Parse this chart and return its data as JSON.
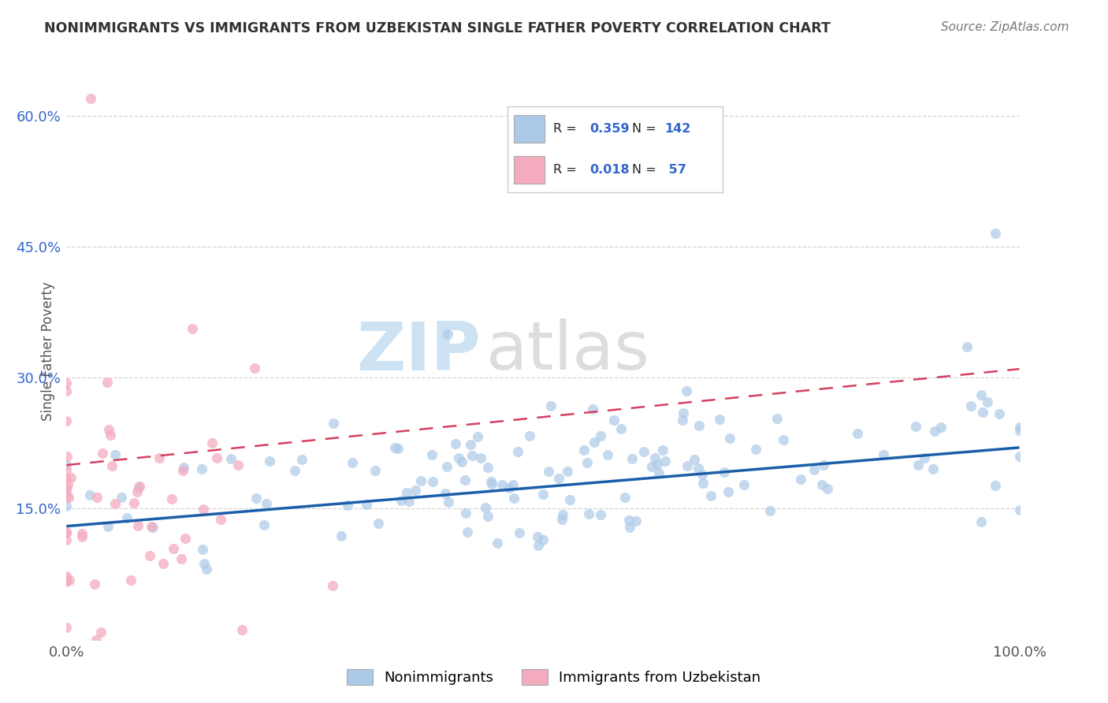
{
  "title": "NONIMMIGRANTS VS IMMIGRANTS FROM UZBEKISTAN SINGLE FATHER POVERTY CORRELATION CHART",
  "source": "Source: ZipAtlas.com",
  "ylabel": "Single Father Poverty",
  "xlim": [
    0,
    100
  ],
  "ylim": [
    0,
    66
  ],
  "ytick_vals": [
    0,
    15,
    30,
    45,
    60
  ],
  "ytick_labels": [
    "",
    "15.0%",
    "30.0%",
    "45.0%",
    "60.0%"
  ],
  "xtick_vals": [
    0,
    100
  ],
  "xtick_labels": [
    "0.0%",
    "100.0%"
  ],
  "legend_labels": [
    "Nonimmigrants",
    "Immigrants from Uzbekistan"
  ],
  "R_blue": 0.359,
  "N_blue": 142,
  "R_pink": 0.018,
  "N_pink": 57,
  "blue_color": "#adc9e8",
  "pink_color": "#f5abbe",
  "blue_line_color": "#1b5faa",
  "pink_line_color": "#d44060",
  "watermark_zip": "ZIP",
  "watermark_atlas": "atlas",
  "background_color": "#ffffff",
  "grid_color": "#cccccc",
  "title_color": "#333333",
  "seed": 7,
  "stats_box_color": "#3366cc",
  "stats_text_color": "#000000"
}
